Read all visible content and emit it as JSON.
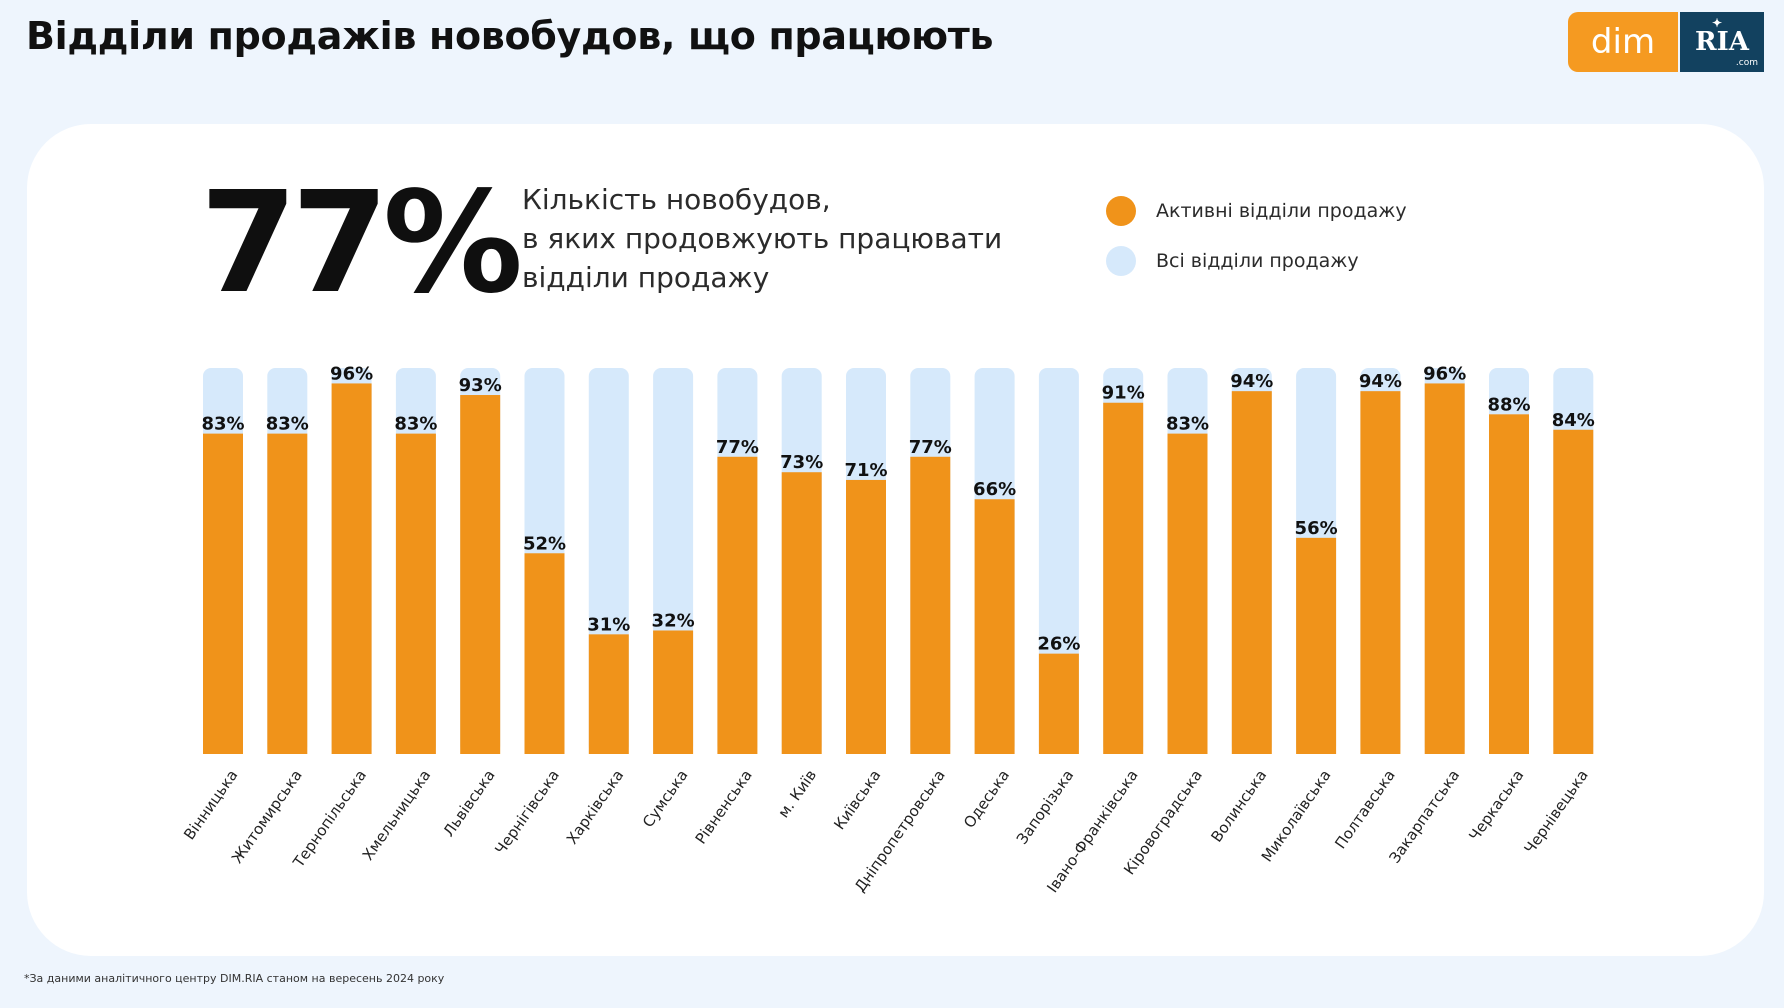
{
  "header": {
    "title": "Відділи продажів новобудов, що працюють"
  },
  "logo": {
    "left_text": "dim",
    "right_text": "RIA",
    "right_suffix": ".com"
  },
  "summary": {
    "big_number": "77%",
    "subtitle_lines": [
      "Кількість новобудов,",
      "в яких продовжують працювати",
      "відділи продажу"
    ]
  },
  "legend": {
    "items": [
      {
        "label": "Активні відділи продажу",
        "color": "#f0931a"
      },
      {
        "label": "Всі відділи продажу",
        "color": "#d6e9fb"
      }
    ]
  },
  "chart_data": {
    "type": "bar",
    "categories": [
      "Вінницька",
      "Житомирська",
      "Тернопільська",
      "Хмельницька",
      "Львівська",
      "Чернігівська",
      "Харківська",
      "Сумська",
      "Рівненська",
      "м. Київ",
      "Київська",
      "Дніпропетровська",
      "Одеська",
      "Запорізька",
      "Івано-Франківська",
      "Кіровоградська",
      "Волинська",
      "Миколаївська",
      "Полтавська",
      "Закарпатська",
      "Черкаська",
      "Чернівецька"
    ],
    "series": [
      {
        "name": "Активні відділи продажу",
        "values": [
          83,
          83,
          96,
          83,
          93,
          52,
          31,
          32,
          77,
          73,
          71,
          77,
          66,
          26,
          91,
          83,
          94,
          56,
          94,
          96,
          88,
          84
        ]
      },
      {
        "name": "Всі відділи продажу",
        "values": [
          100,
          100,
          100,
          100,
          100,
          100,
          100,
          100,
          100,
          100,
          100,
          100,
          100,
          100,
          100,
          100,
          100,
          100,
          100,
          100,
          100,
          100
        ]
      }
    ],
    "data_labels": [
      "83%",
      "83%",
      "96%",
      "83%",
      "93%",
      "52%",
      "31%",
      "32%",
      "77%",
      "73%",
      "71%",
      "77%",
      "66%",
      "26%",
      "91%",
      "83%",
      "94%",
      "56%",
      "94%",
      "96%",
      "88%",
      "84%"
    ],
    "ylim": [
      0,
      100
    ],
    "grid": false,
    "legend_position": "top-right",
    "colors": {
      "active": "#f0931a",
      "all": "#d6e9fb"
    }
  },
  "footnote": "*За даними аналітичного центру DIM.RIA станом на вересень 2024 року"
}
